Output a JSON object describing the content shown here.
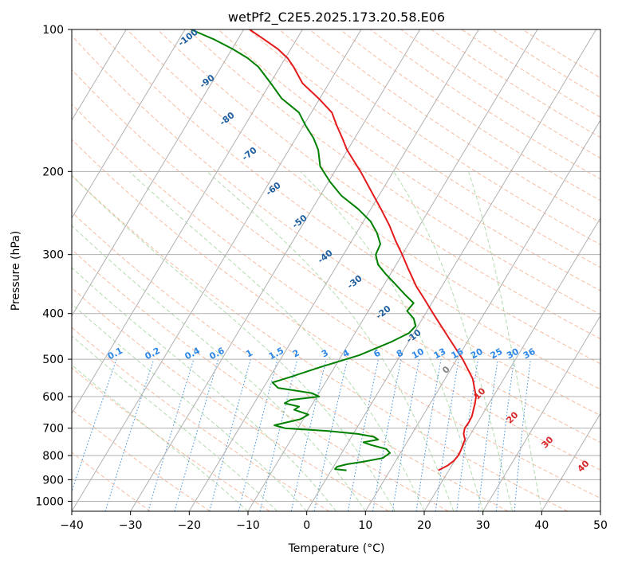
{
  "colors": {
    "temperature": "#e41a1c",
    "dewpoint": "#008000",
    "isotherm_grid": "#b0b0b0",
    "dry_adiabat": "#f4a582",
    "moist_adiabat": "#a6d5a0",
    "mixing_ratio": "#3a8fde",
    "mixing_ratio_label": "#2b86e6",
    "dry_adiabat_label": "#d62728",
    "moist_adiabat_label": "#1f5fa0",
    "zero_label": "#808080"
  },
  "chart_data": {
    "type": "line",
    "subtype": "skew-T log-P diagram",
    "title": "wetPf2_C2E5.2025.173.20.58.E06",
    "xlabel": "Temperature (°C)",
    "ylabel": "Pressure (hPa)",
    "xlim": [
      -40,
      50
    ],
    "ylim": [
      1050,
      100
    ],
    "y_scale": "log",
    "grid": true,
    "x_ticks": [
      -40,
      -30,
      -20,
      -10,
      0,
      10,
      20,
      30,
      40,
      50
    ],
    "y_ticks": [
      100,
      200,
      300,
      400,
      500,
      600,
      700,
      800,
      900,
      1000
    ],
    "x_tick_labels": [
      "−40",
      "−30",
      "−20",
      "−10",
      "0",
      "10",
      "20",
      "30",
      "40",
      "50"
    ],
    "y_tick_labels": [
      "100",
      "200",
      "300",
      "400",
      "500",
      "600",
      "700",
      "800",
      "900",
      "1000"
    ],
    "series": [
      {
        "name": "temperature",
        "points": [
          [
            860,
            18.2
          ],
          [
            840,
            19.3
          ],
          [
            820,
            19.9
          ],
          [
            800,
            20.1
          ],
          [
            780,
            20.0
          ],
          [
            760,
            19.8
          ],
          [
            740,
            19.6
          ],
          [
            720,
            18.8
          ],
          [
            700,
            18.4
          ],
          [
            680,
            18.5
          ],
          [
            660,
            18.4
          ],
          [
            640,
            18.0
          ],
          [
            620,
            17.6
          ],
          [
            600,
            17.1
          ],
          [
            550,
            14.7
          ],
          [
            500,
            11.0
          ],
          [
            450,
            6.4
          ],
          [
            400,
            1.3
          ],
          [
            370,
            -2.0
          ],
          [
            350,
            -4.4
          ],
          [
            320,
            -7.7
          ],
          [
            300,
            -10.0
          ],
          [
            280,
            -12.6
          ],
          [
            260,
            -15.2
          ],
          [
            240,
            -18.3
          ],
          [
            220,
            -21.8
          ],
          [
            200,
            -25.6
          ],
          [
            190,
            -27.8
          ],
          [
            180,
            -30.1
          ],
          [
            170,
            -32.1
          ],
          [
            160,
            -34.3
          ],
          [
            150,
            -36.5
          ],
          [
            140,
            -40.2
          ],
          [
            130,
            -44.5
          ],
          [
            120,
            -47.7
          ],
          [
            115,
            -49.6
          ],
          [
            110,
            -52.2
          ],
          [
            105,
            -55.5
          ],
          [
            100,
            -59.0
          ]
        ]
      },
      {
        "name": "dewpoint",
        "points": [
          [
            860,
            2.6
          ],
          [
            855,
            0.5
          ],
          [
            845,
            0.6
          ],
          [
            835,
            2.0
          ],
          [
            825,
            4.5
          ],
          [
            810,
            7.5
          ],
          [
            790,
            8.2
          ],
          [
            775,
            7.2
          ],
          [
            760,
            4.2
          ],
          [
            750,
            2.6
          ],
          [
            740,
            4.8
          ],
          [
            730,
            3.8
          ],
          [
            720,
            0.8
          ],
          [
            710,
            -4.5
          ],
          [
            700,
            -12.2
          ],
          [
            690,
            -14.3
          ],
          [
            670,
            -10.5
          ],
          [
            655,
            -9.6
          ],
          [
            640,
            -12.5
          ],
          [
            630,
            -12.0
          ],
          [
            620,
            -14.8
          ],
          [
            610,
            -14.2
          ],
          [
            600,
            -9.6
          ],
          [
            590,
            -11.2
          ],
          [
            575,
            -17.5
          ],
          [
            560,
            -19.0
          ],
          [
            545,
            -16.5
          ],
          [
            520,
            -12.5
          ],
          [
            490,
            -7.0
          ],
          [
            460,
            -3.0
          ],
          [
            440,
            -0.8
          ],
          [
            425,
            -0.4
          ],
          [
            410,
            -1.5
          ],
          [
            395,
            -3.4
          ],
          [
            380,
            -3.1
          ],
          [
            365,
            -5.4
          ],
          [
            345,
            -8.4
          ],
          [
            330,
            -10.8
          ],
          [
            315,
            -13.1
          ],
          [
            300,
            -14.5
          ],
          [
            285,
            -14.8
          ],
          [
            270,
            -16.5
          ],
          [
            255,
            -18.8
          ],
          [
            240,
            -22.2
          ],
          [
            225,
            -26.4
          ],
          [
            210,
            -29.8
          ],
          [
            195,
            -33.0
          ],
          [
            180,
            -35.0
          ],
          [
            170,
            -37.0
          ],
          [
            160,
            -39.6
          ],
          [
            150,
            -42.1
          ],
          [
            140,
            -46.5
          ],
          [
            130,
            -49.9
          ],
          [
            120,
            -53.7
          ],
          [
            115,
            -56.4
          ],
          [
            110,
            -59.9
          ],
          [
            105,
            -64.0
          ],
          [
            100,
            -69.0
          ]
        ]
      }
    ],
    "reference_lines": {
      "isotherms": "diagonal solid gray lines",
      "dry_adiabats": "dashed orange",
      "moist_adiabats": "dashed green",
      "mixing_ratio_lines": "dotted blue"
    },
    "mixing_ratio_labels": [
      "0.1",
      "0.2",
      "0.4",
      "0.6",
      "1",
      "1.5",
      "2",
      "3",
      "4",
      "6",
      "8",
      "10",
      "13",
      "16",
      "20",
      "25",
      "30",
      "36"
    ],
    "isotherm_labels": [
      "-100",
      "-90",
      "-80",
      "-70",
      "-60",
      "-50",
      "-40",
      "-30",
      "-20",
      "-10"
    ],
    "dry_adiabat_labels": [
      "10",
      "20",
      "30",
      "40"
    ],
    "zero_label": "0"
  }
}
